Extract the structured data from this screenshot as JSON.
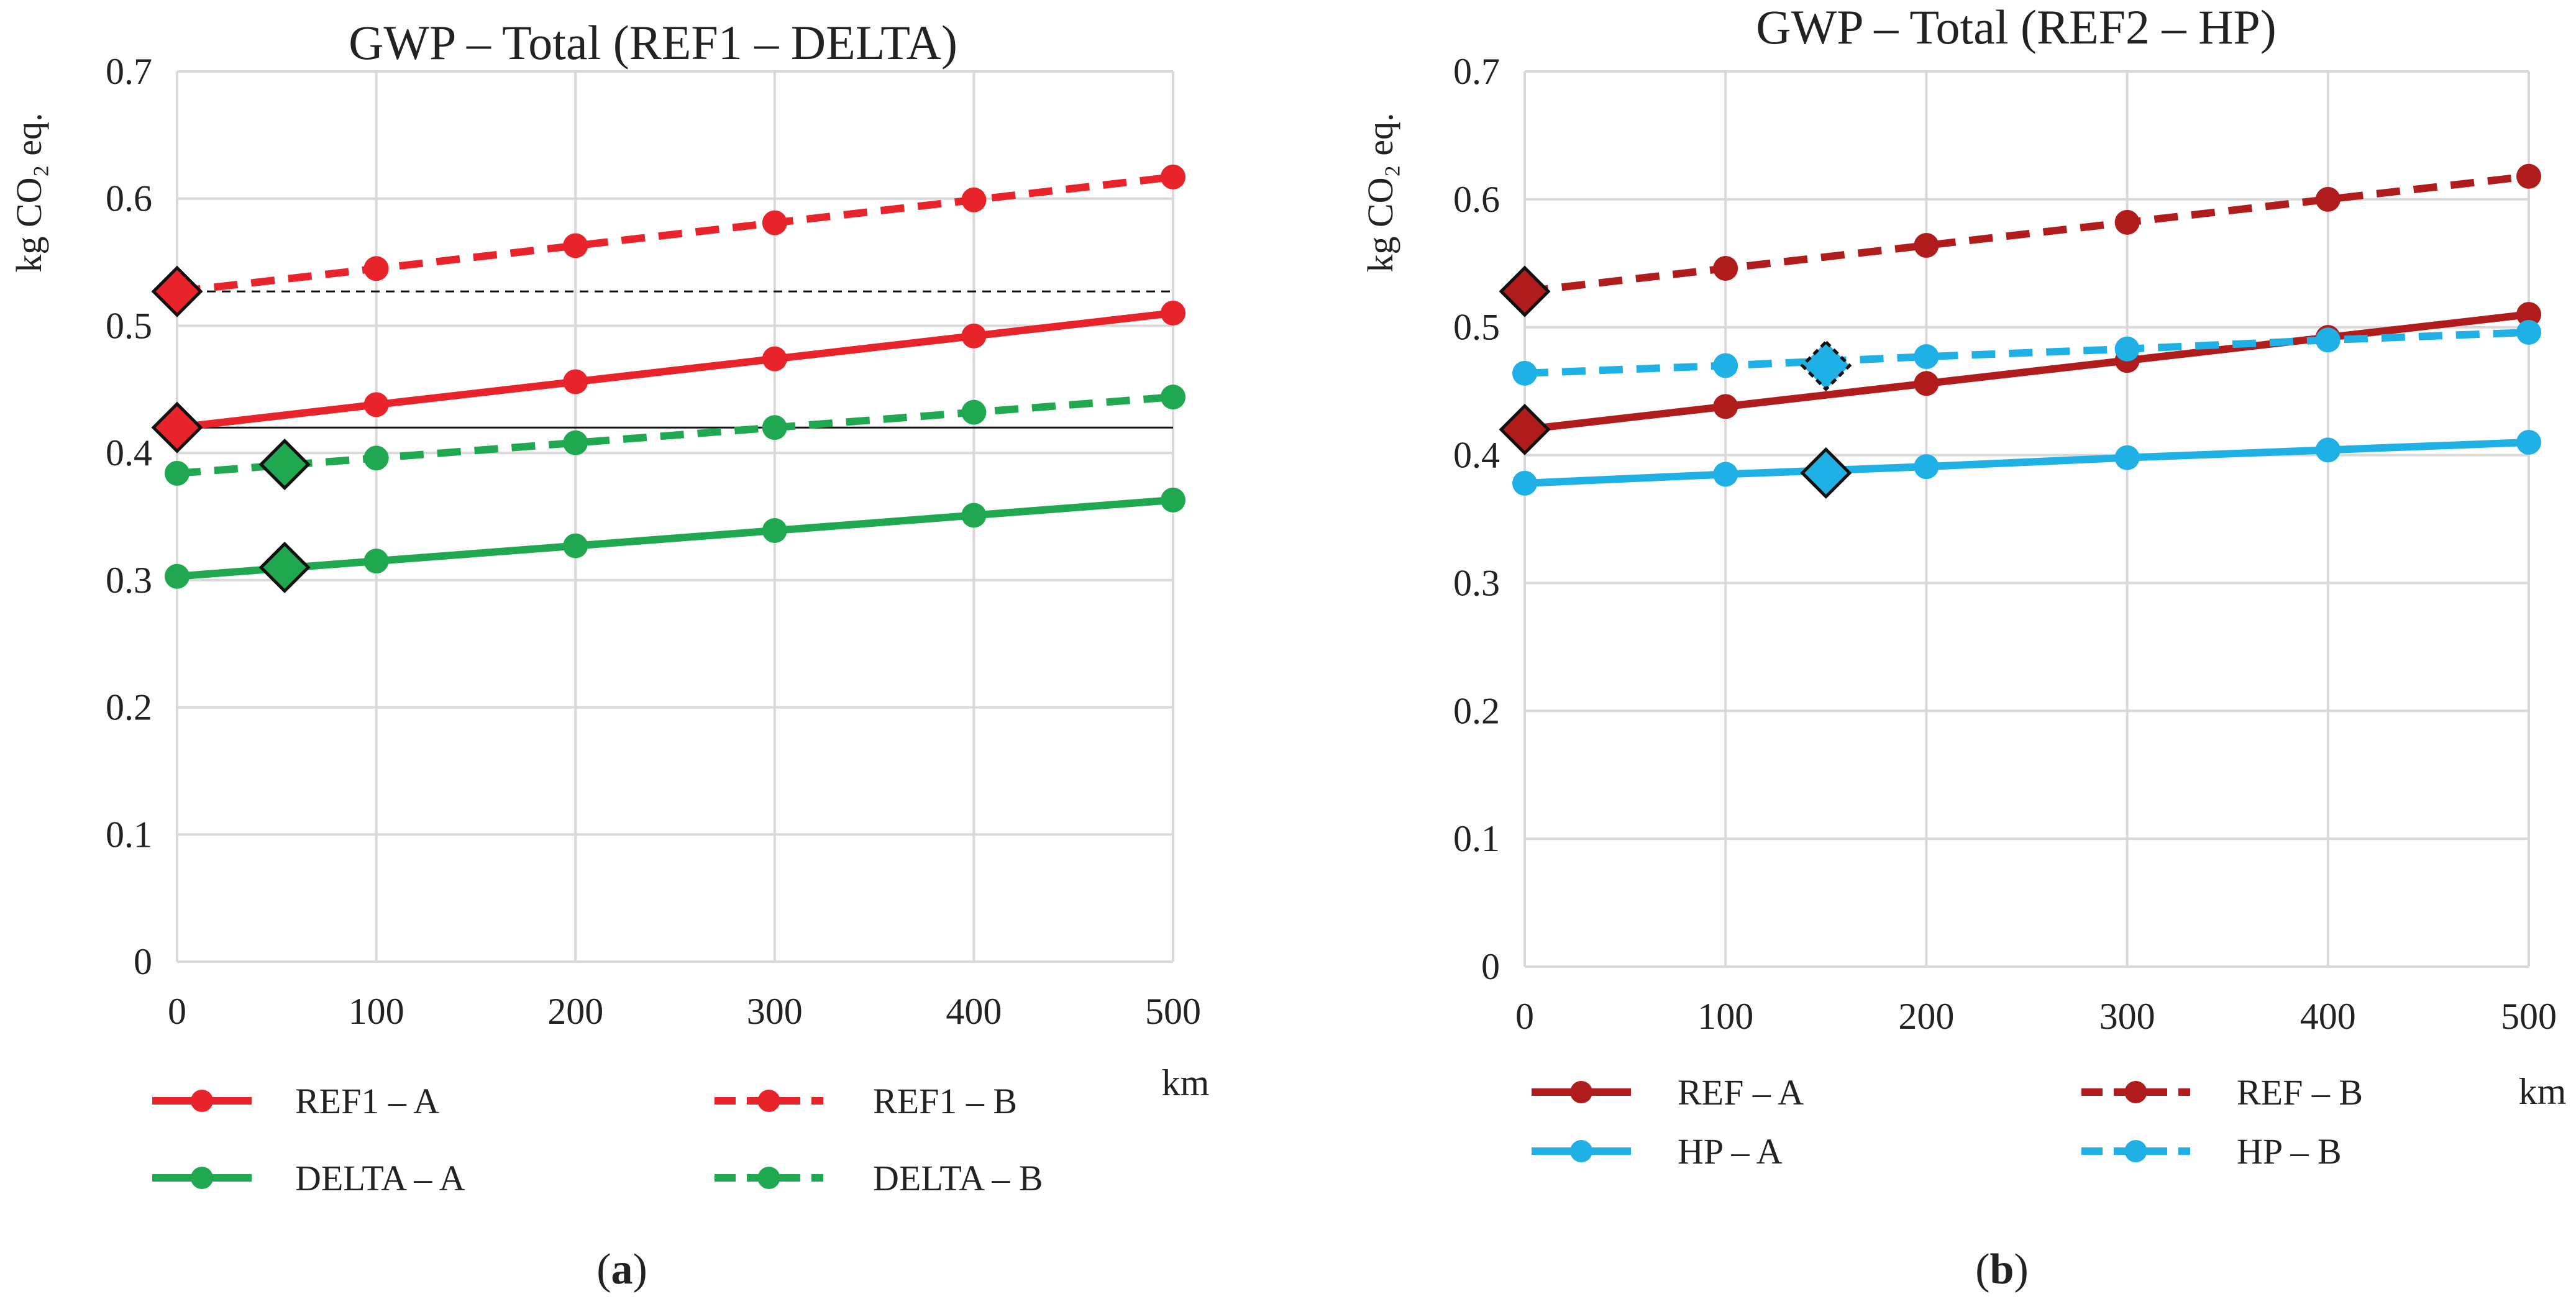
{
  "chart_data": [
    {
      "type": "line",
      "title": "GWP – Total (REF1 – DELTA)",
      "ylabel": "kg CO₂ eq.",
      "xlabel": "km",
      "ylim": [
        0,
        0.7
      ],
      "xlim": [
        0,
        500
      ],
      "yticks": [
        "0",
        "0.1",
        "0.2",
        "0.3",
        "0.4",
        "0.5",
        "0.6",
        "0.7"
      ],
      "xticks": [
        "0",
        "100",
        "200",
        "300",
        "400",
        "500"
      ],
      "caption_letter": "a",
      "series": [
        {
          "name": "REF1 – A",
          "color": "#e8232a",
          "dash": false,
          "x": [
            0,
            100,
            200,
            300,
            400,
            500
          ],
          "values": [
            0.42,
            0.438,
            0.456,
            0.474,
            0.492,
            0.51
          ]
        },
        {
          "name": "REF1 – B",
          "color": "#e8232a",
          "dash": true,
          "x": [
            0,
            100,
            200,
            300,
            400,
            500
          ],
          "values": [
            0.527,
            0.545,
            0.563,
            0.581,
            0.599,
            0.617
          ]
        },
        {
          "name": "DELTA – A",
          "color": "#1fa84f",
          "dash": false,
          "x": [
            0,
            100,
            200,
            300,
            400,
            500
          ],
          "values": [
            0.303,
            0.315,
            0.327,
            0.339,
            0.351,
            0.363
          ]
        },
        {
          "name": "DELTA – B",
          "color": "#1fa84f",
          "dash": true,
          "x": [
            0,
            100,
            200,
            300,
            400,
            500
          ],
          "values": [
            0.384,
            0.396,
            0.408,
            0.42,
            0.432,
            0.444
          ]
        }
      ],
      "reference_lines": [
        {
          "y": 0.527,
          "dash": true
        },
        {
          "y": 0.42,
          "dash": false
        }
      ],
      "highlight_points": [
        {
          "x": 0,
          "y": 0.527,
          "color": "#e8232a",
          "dash": false
        },
        {
          "x": 0,
          "y": 0.42,
          "color": "#e8232a",
          "dash": false
        },
        {
          "x": 54,
          "y": 0.391,
          "color": "#1fa84f",
          "dash": false
        },
        {
          "x": 54,
          "y": 0.31,
          "color": "#1fa84f",
          "dash": false
        }
      ]
    },
    {
      "type": "line",
      "title": "GWP – Total (REF2 – HP)",
      "ylabel": "kg CO₂ eq.",
      "xlabel": "km",
      "ylim": [
        0,
        0.7
      ],
      "xlim": [
        0,
        500
      ],
      "yticks": [
        "0",
        "0.1",
        "0.2",
        "0.3",
        "0.4",
        "0.5",
        "0.6",
        "0.7"
      ],
      "xticks": [
        "0",
        "100",
        "200",
        "300",
        "400",
        "500"
      ],
      "caption_letter": "b",
      "series": [
        {
          "name": "REF – A",
          "color": "#b01c1c",
          "dash": false,
          "x": [
            0,
            100,
            200,
            300,
            400,
            500
          ],
          "values": [
            0.42,
            0.438,
            0.456,
            0.474,
            0.492,
            0.51
          ]
        },
        {
          "name": "REF – B",
          "color": "#b01c1c",
          "dash": true,
          "x": [
            0,
            100,
            200,
            300,
            400,
            500
          ],
          "values": [
            0.528,
            0.546,
            0.564,
            0.582,
            0.6,
            0.618
          ]
        },
        {
          "name": "HP – A",
          "color": "#1fb1e6",
          "dash": false,
          "x": [
            0,
            100,
            200,
            300,
            400,
            500
          ],
          "values": [
            0.378,
            0.385,
            0.391,
            0.398,
            0.404,
            0.41
          ]
        },
        {
          "name": "HP – B",
          "color": "#1fb1e6",
          "dash": true,
          "x": [
            0,
            100,
            200,
            300,
            400,
            500
          ],
          "values": [
            0.464,
            0.47,
            0.477,
            0.483,
            0.49,
            0.496
          ]
        }
      ],
      "reference_lines": [],
      "highlight_points": [
        {
          "x": 0,
          "y": 0.528,
          "color": "#b01c1c",
          "dash": false
        },
        {
          "x": 0,
          "y": 0.42,
          "color": "#b01c1c",
          "dash": false
        },
        {
          "x": 150,
          "y": 0.47,
          "color": "#1fb1e6",
          "dash": true
        },
        {
          "x": 150,
          "y": 0.386,
          "color": "#1fb1e6",
          "dash": false
        }
      ]
    }
  ]
}
